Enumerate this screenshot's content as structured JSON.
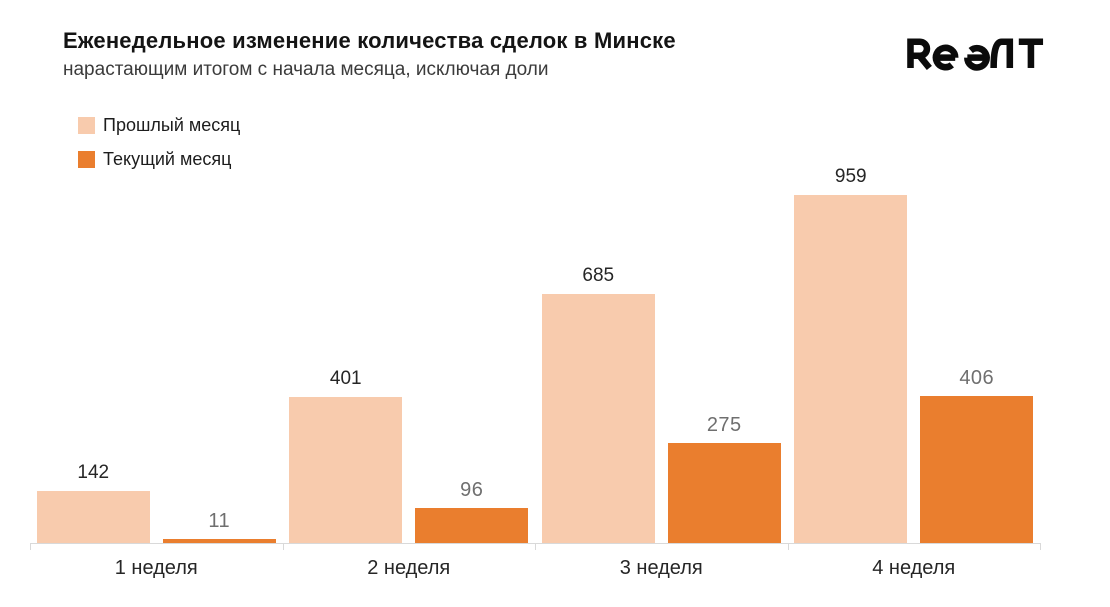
{
  "header": {
    "title": "Еженедельное изменение количества сделок в Минске",
    "subtitle": "нарастающим итогом с начала месяца, исключая доли",
    "brand": "Realt"
  },
  "chart_data": {
    "type": "bar",
    "title": "Еженедельное изменение количества сделок в Минске",
    "subtitle": "нарастающим итогом с начала месяца, исключая доли",
    "categories": [
      "1 неделя",
      "2 неделя",
      "3 неделя",
      "4 неделя"
    ],
    "series": [
      {
        "name": "Прошлый месяц",
        "color": "#F8CBAD",
        "label_color": "#262626",
        "values": [
          142,
          401,
          685,
          959
        ]
      },
      {
        "name": "Текущий месяц",
        "color": "#EA7E2E",
        "label_color": "#6f6f6f",
        "values": [
          11,
          96,
          275,
          406
        ]
      }
    ],
    "value_labels": true,
    "grid": false,
    "y_axis_visible": false,
    "ylim": [
      0,
      959
    ],
    "axis_color": "#d9d9d9",
    "legend_position": "top-left"
  }
}
